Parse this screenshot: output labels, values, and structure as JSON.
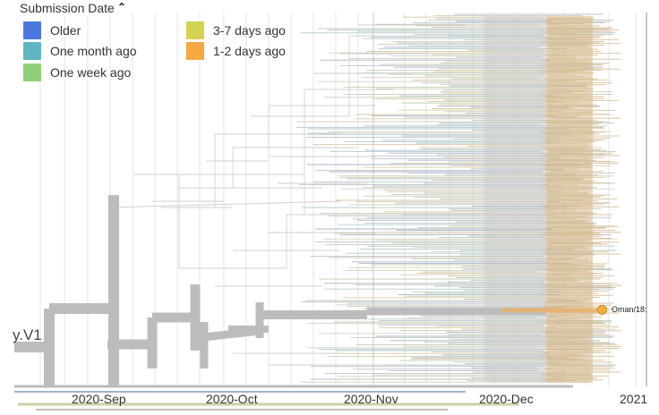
{
  "legend": {
    "title": "Submission Date",
    "items": [
      {
        "label": "Older",
        "color": "#4a76e0"
      },
      {
        "label": "One month ago",
        "color": "#5fb6c1"
      },
      {
        "label": "One week ago",
        "color": "#8fcf78"
      },
      {
        "label": "3-7 days ago",
        "color": "#d4d252"
      },
      {
        "label": "1-2 days ago",
        "color": "#f5a940"
      }
    ]
  },
  "axis": {
    "ticks": [
      "2020-Sep",
      "2020-Oct",
      "2020-Nov",
      "2020-Dec",
      "2021"
    ]
  },
  "lineage_label": "y.V1",
  "highlighted_tip": "Oman/18:"
}
